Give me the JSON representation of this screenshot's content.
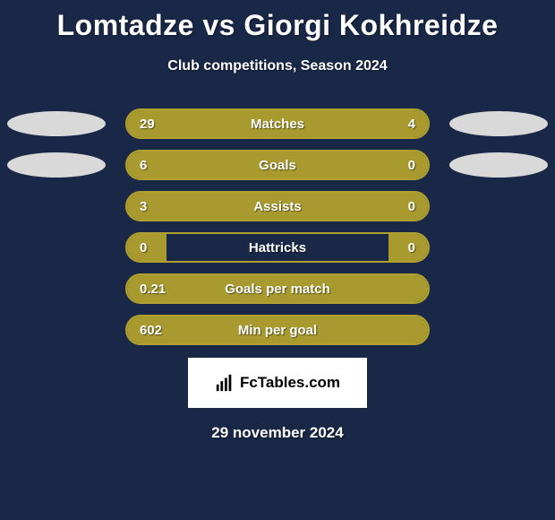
{
  "title": "Lomtadze vs Giorgi Kokhreidze",
  "subtitle": "Club competitions, Season 2024",
  "colors": {
    "background": "#1a2848",
    "bar_fill": "#a89a2e",
    "bar_border": "#b0a030",
    "ellipse": "#d9d9d9",
    "text": "#ffffff"
  },
  "stats": [
    {
      "left_val": "29",
      "right_val": "4",
      "label": "Matches",
      "left_pct": 78,
      "right_pct": 22,
      "show_left_ellipse": true,
      "show_right_ellipse": true
    },
    {
      "left_val": "6",
      "right_val": "0",
      "label": "Goals",
      "left_pct": 90,
      "right_pct": 10,
      "show_left_ellipse": true,
      "show_right_ellipse": true
    },
    {
      "left_val": "3",
      "right_val": "0",
      "label": "Assists",
      "left_pct": 90,
      "right_pct": 10,
      "show_left_ellipse": false,
      "show_right_ellipse": false
    },
    {
      "left_val": "0",
      "right_val": "0",
      "label": "Hattricks",
      "left_pct": 13,
      "right_pct": 13,
      "show_left_ellipse": false,
      "show_right_ellipse": false
    },
    {
      "left_val": "0.21",
      "right_val": "",
      "label": "Goals per match",
      "left_pct": 100,
      "right_pct": 0,
      "show_left_ellipse": false,
      "show_right_ellipse": false
    },
    {
      "left_val": "602",
      "right_val": "",
      "label": "Min per goal",
      "left_pct": 100,
      "right_pct": 0,
      "show_left_ellipse": false,
      "show_right_ellipse": false
    }
  ],
  "brand": "FcTables.com",
  "date": "29 november 2024"
}
